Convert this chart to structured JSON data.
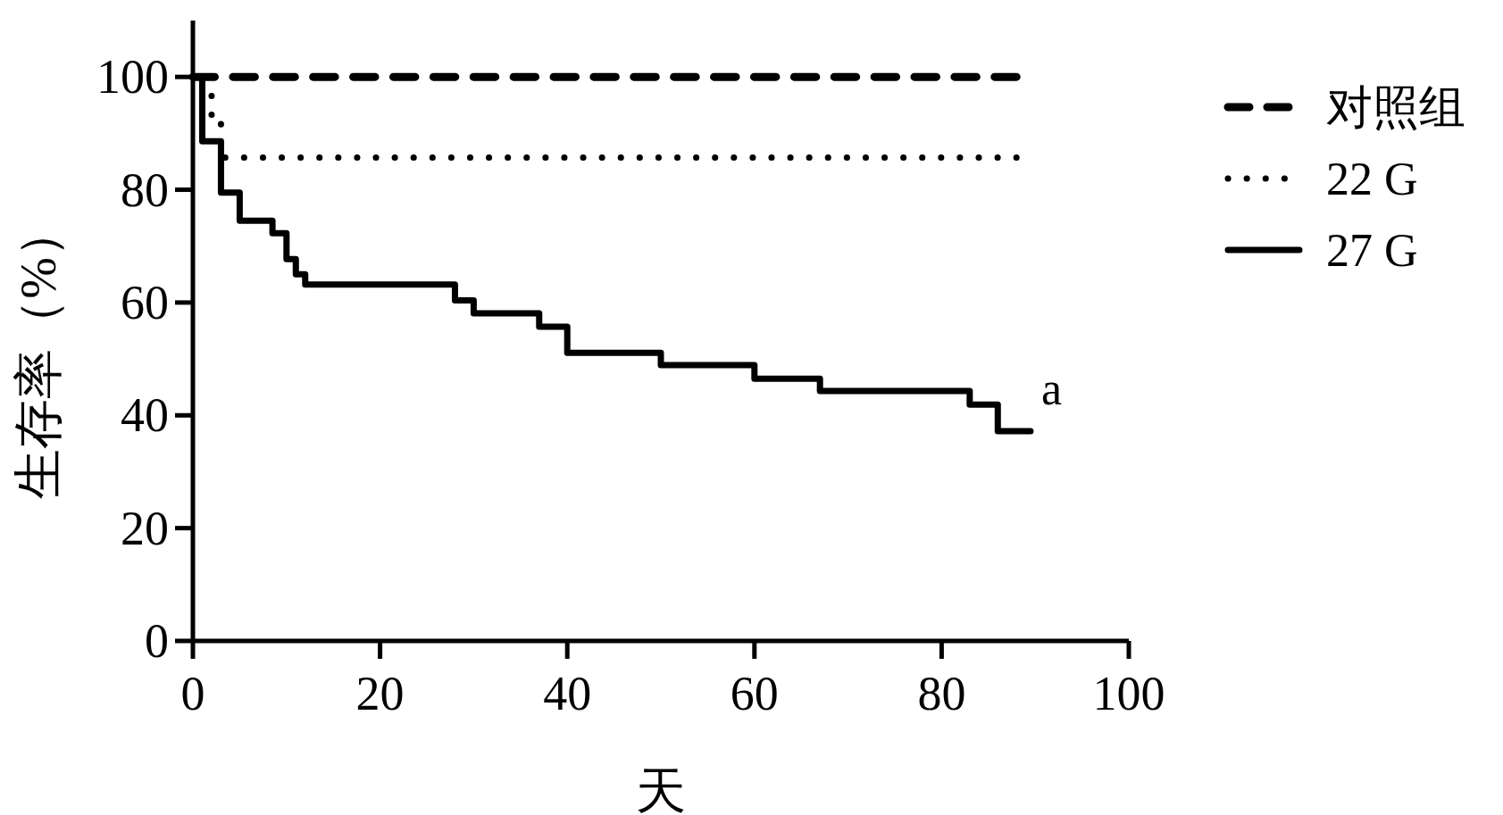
{
  "chart_data": {
    "type": "step",
    "xlabel": "天",
    "ylabel": "生存率（%）",
    "xlim": [
      0,
      100
    ],
    "ylim": [
      0,
      110
    ],
    "xticks": [
      0,
      20,
      40,
      60,
      80,
      100
    ],
    "yticks": [
      0,
      20,
      40,
      60,
      80,
      100
    ],
    "grid": false,
    "legend": "top right",
    "series": [
      {
        "name": "对照组",
        "color": "#000000",
        "line_style": "dashed",
        "x": [
          0,
          88
        ],
        "values": [
          100,
          100
        ]
      },
      {
        "name": "22 G",
        "color": "#000000",
        "line_style": "dotted",
        "x": [
          0,
          2,
          3,
          88
        ],
        "values": [
          100,
          93,
          85.7,
          85.7
        ]
      },
      {
        "name": "27 G",
        "color": "#000000",
        "line_style": "solid",
        "x": [
          0,
          1,
          3,
          5,
          8.5,
          10,
          11,
          12,
          28,
          30,
          37,
          40,
          50,
          60,
          67,
          83,
          86,
          89.5
        ],
        "values": [
          100,
          88.6,
          79.5,
          74.5,
          72.3,
          67.7,
          65,
          63.2,
          60.4,
          58.1,
          55.7,
          51.1,
          48.9,
          46.5,
          44.3,
          41.9,
          37.2,
          37.2
        ]
      }
    ],
    "annotations": [
      "a"
    ]
  }
}
